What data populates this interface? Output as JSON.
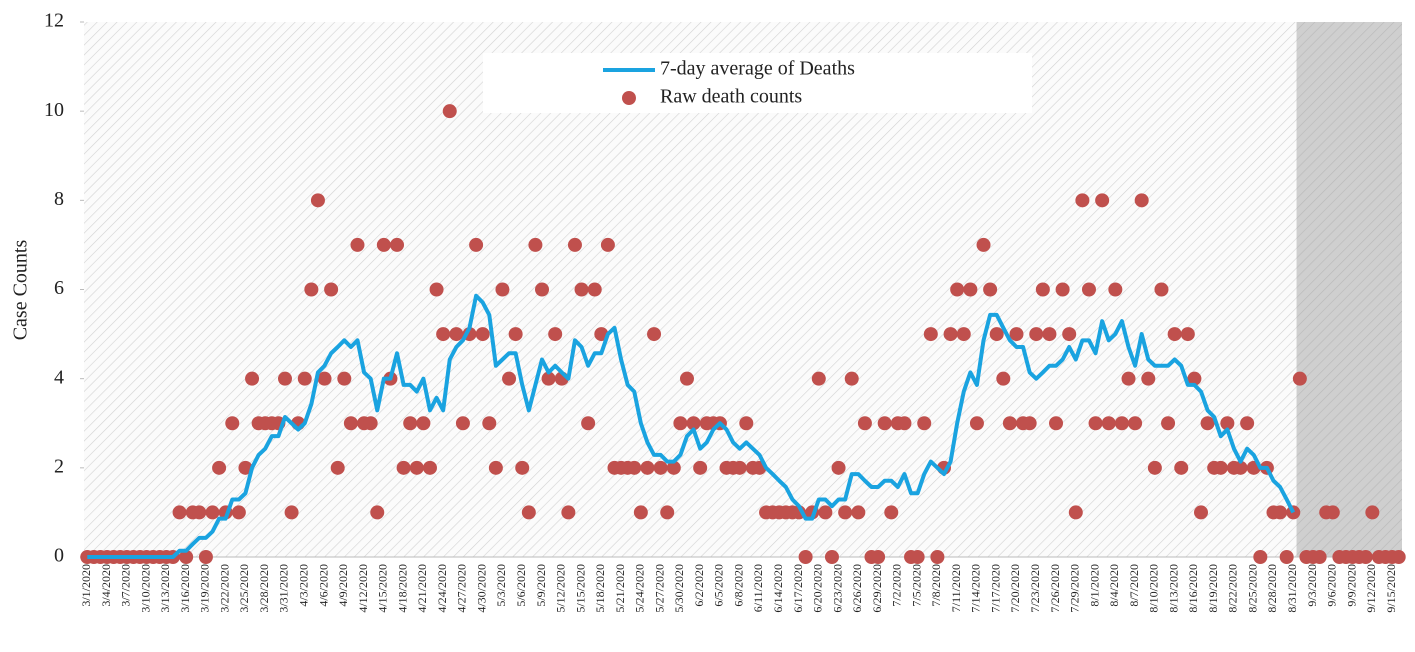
{
  "chart_data": {
    "type": "line",
    "y_label": "Case Counts",
    "ylim": [
      0,
      12
    ],
    "yticks": [
      0,
      2,
      4,
      6,
      8,
      10,
      12
    ],
    "legend": "top",
    "categories": [
      "3/1/2020",
      null,
      null,
      "3/4/2020",
      null,
      null,
      "3/7/2020",
      null,
      null,
      "3/10/2020",
      null,
      null,
      "3/13/2020",
      null,
      null,
      "3/16/2020",
      null,
      null,
      "3/19/2020",
      null,
      null,
      "3/22/2020",
      null,
      null,
      "3/25/2020",
      null,
      null,
      "3/28/2020",
      null,
      null,
      "3/31/2020",
      null,
      null,
      "4/3/2020",
      null,
      null,
      "4/6/2020",
      null,
      null,
      "4/9/2020",
      null,
      null,
      "4/12/2020",
      null,
      null,
      "4/15/2020",
      null,
      null,
      "4/18/2020",
      null,
      null,
      "4/21/2020",
      null,
      null,
      "4/24/2020",
      null,
      null,
      "4/27/2020",
      null,
      null,
      "4/30/2020",
      null,
      null,
      "5/3/2020",
      null,
      null,
      "5/6/2020",
      null,
      null,
      "5/9/2020",
      null,
      null,
      "5/12/2020",
      null,
      null,
      "5/15/2020",
      null,
      null,
      "5/18/2020",
      null,
      null,
      "5/21/2020",
      null,
      null,
      "5/24/2020",
      null,
      null,
      "5/27/2020",
      null,
      null,
      "5/30/2020",
      null,
      null,
      "6/2/2020",
      null,
      null,
      "6/5/2020",
      null,
      null,
      "6/8/2020",
      null,
      null,
      "6/11/2020",
      null,
      null,
      "6/14/2020",
      null,
      null,
      "6/17/2020",
      null,
      null,
      "6/20/2020",
      null,
      null,
      "6/23/2020",
      null,
      null,
      "6/26/2020",
      null,
      null,
      "6/29/2020",
      null,
      null,
      "7/2/2020",
      null,
      null,
      "7/5/2020",
      null,
      null,
      "7/8/2020",
      null,
      null,
      "7/11/2020",
      null,
      null,
      "7/14/2020",
      null,
      null,
      "7/17/2020",
      null,
      null,
      "7/20/2020",
      null,
      null,
      "7/23/2020",
      null,
      null,
      "7/26/2020",
      null,
      null,
      "7/29/2020",
      null,
      null,
      "8/1/2020",
      null,
      null,
      "8/4/2020",
      null,
      null,
      "8/7/2020",
      null,
      null,
      "8/10/2020",
      null,
      null,
      "8/13/2020",
      null,
      null,
      "8/16/2020",
      null,
      null,
      "8/19/2020",
      null,
      null,
      "8/22/2020",
      null,
      null,
      "8/25/2020",
      null,
      null,
      "8/28/2020",
      null,
      null,
      "8/31/2020",
      null,
      null,
      "9/3/2020",
      null,
      null,
      "9/6/2020",
      null,
      null,
      "9/9/2020",
      null,
      null,
      "9/12/2020",
      null,
      null,
      "9/15/2020",
      null
    ],
    "series": [
      {
        "name": "7-day average of Deaths",
        "type": "line",
        "color": "#1aa3e0",
        "values": [
          0,
          0,
          0,
          0,
          0,
          0,
          0,
          0,
          0,
          0,
          0,
          0,
          0,
          0,
          0.14,
          0.14,
          0.29,
          0.43,
          0.43,
          0.57,
          0.86,
          0.86,
          1.29,
          1.29,
          1.43,
          2,
          2.29,
          2.43,
          2.71,
          2.71,
          3.14,
          3,
          2.86,
          3,
          3.43,
          4.14,
          4.29,
          4.57,
          4.71,
          4.86,
          4.71,
          4.86,
          4.14,
          4,
          3.29,
          4,
          4,
          4.57,
          3.86,
          3.86,
          3.71,
          4,
          3.29,
          3.57,
          3.29,
          4.43,
          4.71,
          4.86,
          5.14,
          5.86,
          5.71,
          5.43,
          4.29,
          4.43,
          4.57,
          4.57,
          3.86,
          3.29,
          3.86,
          4.43,
          4.14,
          4.29,
          4.14,
          4,
          4.86,
          4.71,
          4.29,
          4.57,
          4.57,
          5,
          5.14,
          4.43,
          3.86,
          3.71,
          3,
          2.57,
          2.29,
          2.29,
          2.14,
          2.14,
          2.29,
          2.71,
          2.86,
          2.43,
          2.57,
          2.86,
          3,
          2.86,
          2.57,
          2.43,
          2.57,
          2.43,
          2.29,
          2,
          1.86,
          1.71,
          1.57,
          1.29,
          1.14,
          0.86,
          0.86,
          1.29,
          1.29,
          1.14,
          1.29,
          1.29,
          1.86,
          1.86,
          1.71,
          1.57,
          1.57,
          1.71,
          1.71,
          1.57,
          1.86,
          1.43,
          1.43,
          1.86,
          2.14,
          2,
          1.86,
          2.14,
          3,
          3.71,
          4.14,
          3.86,
          4.86,
          5.43,
          5.43,
          5.14,
          4.86,
          4.71,
          4.71,
          4.14,
          4,
          4.14,
          4.29,
          4.29,
          4.43,
          4.71,
          4.43,
          4.86,
          4.86,
          4.57,
          5.29,
          4.86,
          5,
          5.29,
          4.71,
          4.29,
          5,
          4.43,
          4.29,
          4.29,
          4.29,
          4.43,
          4.29,
          3.86,
          3.86,
          3.71,
          3.29,
          3.14,
          2.71,
          2.86,
          2.43,
          2.14,
          2.43,
          2.29,
          2,
          2,
          1.71,
          1.57,
          1.29,
          1,
          null,
          null,
          null,
          null,
          null,
          null,
          null,
          null,
          null,
          null,
          null,
          null,
          null,
          null,
          null,
          null
        ]
      },
      {
        "name": "Raw death counts",
        "type": "scatter",
        "color": "#c0504d",
        "values": [
          0,
          0,
          0,
          0,
          0,
          0,
          0,
          0,
          0,
          0,
          0,
          0,
          0,
          0,
          1,
          0,
          1,
          1,
          0,
          1,
          2,
          1,
          3,
          1,
          2,
          4,
          3,
          3,
          3,
          3,
          4,
          1,
          3,
          4,
          6,
          8,
          4,
          6,
          2,
          4,
          3,
          7,
          3,
          3,
          1,
          7,
          4,
          7,
          2,
          3,
          2,
          3,
          2,
          6,
          5,
          10,
          5,
          3,
          5,
          7,
          5,
          3,
          2,
          6,
          4,
          5,
          2,
          1,
          7,
          6,
          4,
          5,
          4,
          1,
          7,
          6,
          3,
          6,
          5,
          7,
          2,
          2,
          2,
          2,
          1,
          2,
          5,
          2,
          1,
          2,
          3,
          4,
          3,
          2,
          3,
          3,
          3,
          2,
          2,
          2,
          3,
          2,
          2,
          1,
          1,
          1,
          1,
          1,
          1,
          0,
          1,
          4,
          1,
          0,
          2,
          1,
          4,
          1,
          3,
          0,
          0,
          3,
          1,
          3,
          3,
          0,
          0,
          3,
          5,
          0,
          2,
          5,
          6,
          5,
          6,
          3,
          7,
          6,
          5,
          4,
          3,
          5,
          3,
          3,
          5,
          6,
          5,
          3,
          6,
          5,
          1,
          8,
          6,
          3,
          8,
          3,
          6,
          3,
          4,
          3,
          8,
          4,
          2,
          6,
          3,
          5,
          2,
          5,
          4,
          1,
          3,
          2,
          2,
          3,
          2,
          2,
          3,
          2,
          0,
          2,
          1,
          1,
          0,
          1,
          4,
          0,
          0,
          0,
          1,
          1,
          0,
          0,
          0,
          0,
          0,
          1,
          0,
          0,
          0,
          0
        ]
      }
    ]
  }
}
